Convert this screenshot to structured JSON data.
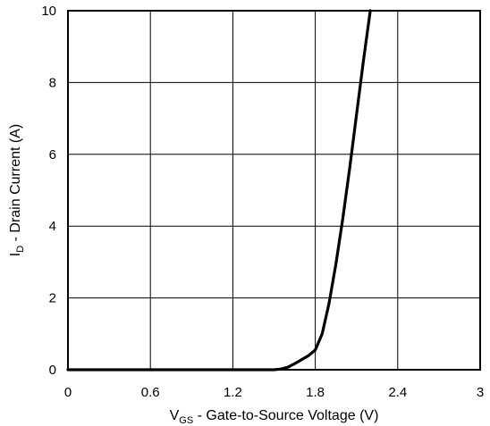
{
  "chart_data": {
    "type": "line",
    "title": "",
    "xlabel": {
      "main": "V",
      "sub": "GS",
      "rest": " - Gate-to-Source Voltage (V)"
    },
    "ylabel": {
      "main": "I",
      "sub": "D",
      "rest": " - Drain Current (A)"
    },
    "xlim": [
      0,
      3
    ],
    "ylim": [
      0,
      10
    ],
    "xticks": [
      0,
      0.6,
      1.2,
      1.8,
      2.4,
      3
    ],
    "xtick_labels": [
      "0",
      "0.6",
      "1.2",
      "1.8",
      "2.4",
      "3"
    ],
    "yticks": [
      0,
      2,
      4,
      6,
      8,
      10
    ],
    "ytick_labels": [
      "0",
      "2",
      "4",
      "6",
      "8",
      "10"
    ],
    "grid": true,
    "legend": "none",
    "line_color": "#000000",
    "series": [
      {
        "x": [
          0,
          0.5,
          1.0,
          1.5,
          1.55,
          1.6,
          1.65,
          1.7,
          1.75,
          1.8,
          1.85,
          1.9,
          1.95,
          2.0,
          2.05,
          2.1,
          2.15,
          2.2
        ],
        "y": [
          0,
          0,
          0,
          0,
          0.02,
          0.07,
          0.17,
          0.28,
          0.39,
          0.55,
          1.0,
          1.85,
          2.95,
          4.2,
          5.6,
          7.1,
          8.6,
          10.0
        ]
      }
    ]
  }
}
